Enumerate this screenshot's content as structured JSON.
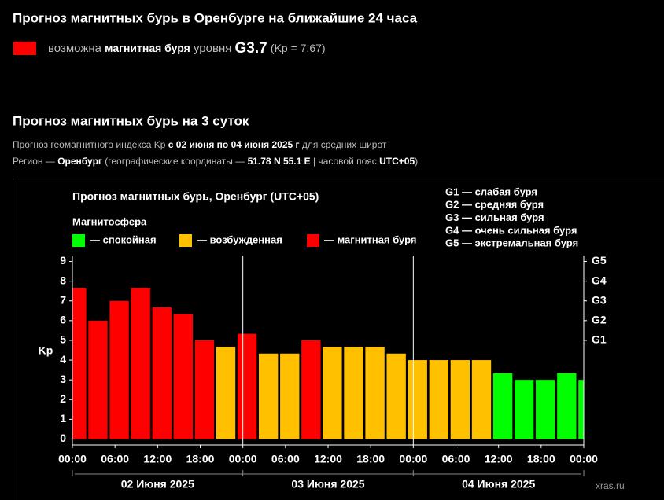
{
  "header": {
    "title": "Прогноз магнитных бурь в Оренбурге на ближайшие 24 часа",
    "alert": {
      "color": "#ff0000",
      "parts": [
        "возможна",
        "магнитная буря",
        "уровня",
        "G3.7",
        "(Kp = 7.67)"
      ]
    },
    "section_title": "Прогноз магнитных бурь на 3 суток",
    "line1": [
      "Прогноз геомагнитного индекса Kp",
      "с 02 июня по 04 июня 2025 г",
      "для средних широт"
    ],
    "line2": [
      "Регион —",
      "Оренбург",
      "(географические координаты —",
      "51.78 N 55.1 E",
      "| часовой пояс",
      "UTC+05",
      ")"
    ]
  },
  "chart_data": {
    "type": "bar",
    "title": "Прогноз магнитных бурь, Оренбург (UTC+05)",
    "legend_title": "Магнитосфера",
    "legend": [
      {
        "name": "— спокойная",
        "color": "#00ff00"
      },
      {
        "name": "— возбужденная",
        "color": "#ffc000"
      },
      {
        "name": "— магнитная буря",
        "color": "#ff0000"
      }
    ],
    "scale_legend": [
      "G1 — слабая буря",
      "G2 — средняя буря",
      "G3 — сильная буря",
      "G4 — очень сильная буря",
      "G5 — экстремальная буря"
    ],
    "ylabel": "Kp",
    "x": [
      0,
      3,
      6,
      9,
      12,
      15,
      18,
      21,
      24,
      27,
      30,
      33,
      36,
      39,
      42,
      45,
      48,
      51,
      54,
      57,
      60,
      63,
      66,
      69,
      72
    ],
    "values": [
      7.67,
      6,
      7,
      7.67,
      6.67,
      6.33,
      5,
      4.67,
      5.33,
      4.33,
      4.33,
      5,
      4.67,
      4.67,
      4.67,
      4.33,
      4,
      4,
      4,
      4,
      3.33,
      3,
      3,
      3.33,
      3
    ],
    "colors": [
      "#ff0000",
      "#ff0000",
      "#ff0000",
      "#ff0000",
      "#ff0000",
      "#ff0000",
      "#ff0000",
      "#ffc000",
      "#ff0000",
      "#ffc000",
      "#ffc000",
      "#ff0000",
      "#ffc000",
      "#ffc000",
      "#ffc000",
      "#ffc000",
      "#ffc000",
      "#ffc000",
      "#ffc000",
      "#ffc000",
      "#00ff00",
      "#00ff00",
      "#00ff00",
      "#00ff00",
      "#00ff00"
    ],
    "xlim": [
      0,
      72
    ],
    "xticks": [
      {
        "value": 0,
        "label": "00:00"
      },
      {
        "value": 6,
        "label": "06:00"
      },
      {
        "value": 12,
        "label": "12:00"
      },
      {
        "value": 18,
        "label": "18:00"
      },
      {
        "value": 24,
        "label": "00:00"
      },
      {
        "value": 30,
        "label": "06:00"
      },
      {
        "value": 36,
        "label": "12:00"
      },
      {
        "value": 42,
        "label": "18:00"
      },
      {
        "value": 48,
        "label": "00:00"
      },
      {
        "value": 54,
        "label": "06:00"
      },
      {
        "value": 60,
        "label": "12:00"
      },
      {
        "value": 66,
        "label": "18:00"
      },
      {
        "value": 72,
        "label": "00:00"
      }
    ],
    "days": [
      "02 Июня 2025",
      "03 Июня 2025",
      "04 Июня 2025"
    ],
    "ylim": [
      -0.3,
      9.3
    ],
    "yticks": [
      0,
      1,
      2,
      3,
      4,
      5,
      6,
      7,
      8,
      9
    ],
    "y2lim": [
      -0.3,
      9.3
    ],
    "y2ticks": [
      {
        "value": 5,
        "label": "G1"
      },
      {
        "value": 6,
        "label": "G2"
      },
      {
        "value": 7,
        "label": "G3"
      },
      {
        "value": 8,
        "label": "G4"
      },
      {
        "value": 9,
        "label": "G5"
      }
    ],
    "source": "xras.ru"
  }
}
